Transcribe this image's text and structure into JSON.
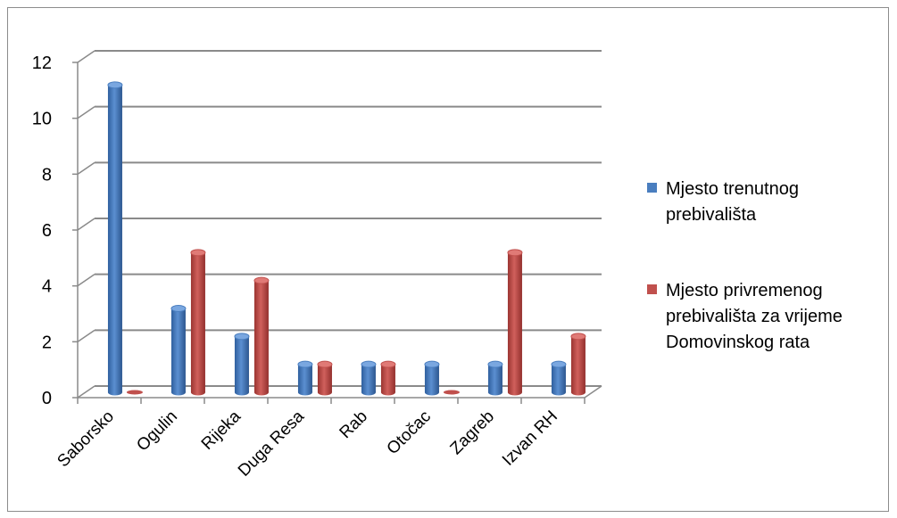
{
  "chart_data": {
    "type": "bar",
    "title": "",
    "xlabel": "",
    "ylabel": "",
    "ylim": [
      0,
      12
    ],
    "yticks": [
      0,
      2,
      4,
      6,
      8,
      10,
      12
    ],
    "grid": true,
    "legend_position": "right",
    "categories": [
      "Saborsko",
      "Ogulin",
      "Rijeka",
      "Duga Resa",
      "Rab",
      "Otočac",
      "Zagreb",
      "Izvan RH"
    ],
    "series": [
      {
        "name": "Mjesto trenutnog prebivališta",
        "name_lines": [
          "Mjesto trenutnog",
          "prebivališta"
        ],
        "color": "#4a7ebf",
        "values": [
          11,
          3,
          2,
          1,
          1,
          1,
          1,
          1
        ]
      },
      {
        "name": "Mjesto privremenog prebivališta za vrijeme Domovinskog rata",
        "name_lines": [
          "Mjesto privremenog",
          "prebivališta za vrijeme",
          "Domovinskog rata"
        ],
        "color": "#c0504d",
        "values": [
          0,
          5,
          4,
          1,
          1,
          0,
          5,
          2
        ]
      }
    ]
  }
}
